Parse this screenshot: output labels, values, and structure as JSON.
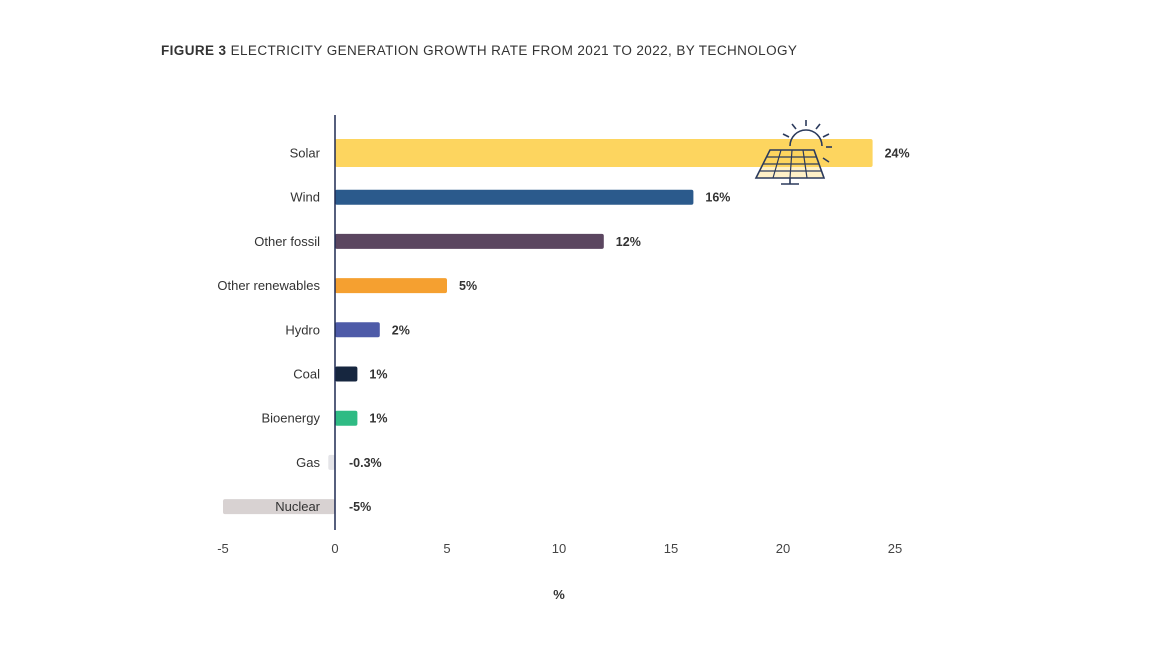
{
  "figure": {
    "number_label": "FIGURE 3",
    "title_text": "ELECTRICITY GENERATION GROWTH RATE FROM 2021 TO 2022, BY TECHNOLOGY"
  },
  "chart_data": {
    "type": "bar",
    "orientation": "horizontal",
    "title": "FIGURE 3 ELECTRICITY GENERATION GROWTH RATE FROM 2021 TO 2022, BY TECHNOLOGY",
    "xlabel": "%",
    "ylabel": "",
    "xlim": [
      -5,
      25
    ],
    "xticks": [
      -5,
      0,
      5,
      10,
      15,
      20,
      25
    ],
    "grid": false,
    "legend": "none",
    "categories": [
      "Solar",
      "Wind",
      "Other fossil",
      "Other renewables",
      "Hydro",
      "Coal",
      "Bioenergy",
      "Gas",
      "Nuclear"
    ],
    "values": [
      24,
      16,
      12,
      5,
      2,
      1,
      1,
      -0.3,
      -5
    ],
    "value_labels": [
      "24%",
      "16%",
      "12%",
      "5%",
      "2%",
      "1%",
      "1%",
      "-0.3%",
      "-5%"
    ],
    "colors": [
      "#FDD55F",
      "#2B5A8C",
      "#5B4660",
      "#F5A030",
      "#4E5BA8",
      "#16263F",
      "#2FBB84",
      "#E4E4E8",
      "#D8D2D2"
    ],
    "axis_color": "#1F2A52",
    "decoration_icon": "solar-panel-sun-icon"
  }
}
